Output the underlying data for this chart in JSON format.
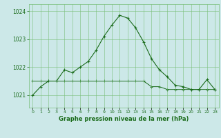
{
  "hours": [
    0,
    1,
    2,
    3,
    4,
    5,
    6,
    7,
    8,
    9,
    10,
    11,
    12,
    13,
    14,
    15,
    16,
    17,
    18,
    19,
    20,
    21,
    22,
    23
  ],
  "pressure": [
    1021.0,
    1021.3,
    1021.5,
    1021.5,
    1021.9,
    1021.8,
    1022.0,
    1022.2,
    1022.6,
    1023.1,
    1023.5,
    1023.85,
    1023.75,
    1023.4,
    1022.9,
    1022.3,
    1021.9,
    1021.65,
    1021.35,
    1021.3,
    1021.2,
    1021.2,
    1021.55,
    1021.2
  ],
  "pressure2": [
    1021.5,
    1021.5,
    1021.5,
    1021.5,
    1021.5,
    1021.5,
    1021.5,
    1021.5,
    1021.5,
    1021.5,
    1021.5,
    1021.5,
    1021.5,
    1021.5,
    1021.5,
    1021.3,
    1021.3,
    1021.2,
    1021.2,
    1021.2,
    1021.2,
    1021.2,
    1021.2,
    1021.2
  ],
  "line_color": "#1a6b1a",
  "bg_color": "#cce8e8",
  "grid_color": "#7abf7a",
  "title": "Graphe pression niveau de la mer (hPa)",
  "ylim_min": 1020.55,
  "ylim_max": 1024.25,
  "yticks": [
    1021,
    1022,
    1023,
    1024
  ],
  "xticks": [
    0,
    1,
    2,
    3,
    4,
    5,
    6,
    7,
    8,
    9,
    10,
    11,
    12,
    13,
    14,
    15,
    16,
    17,
    18,
    19,
    20,
    21,
    22,
    23
  ]
}
